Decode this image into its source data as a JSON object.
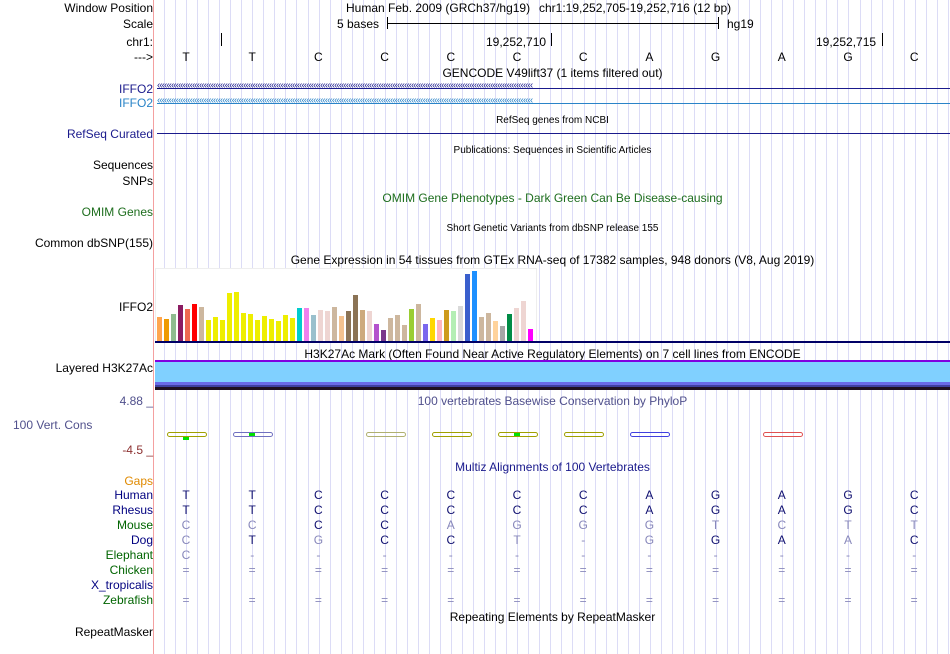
{
  "labels": {
    "window_position": "Window Position",
    "scale": "Scale",
    "chr": "chr1:",
    "strand": "--->",
    "iffo2_a": "IFFO2",
    "iffo2_b": "IFFO2",
    "refseq": "RefSeq Curated",
    "sequences": "Sequences",
    "snps": "SNPs",
    "omim": "OMIM Genes",
    "dbsnp": "Common dbSNP(155)",
    "gtex": "IFFO2",
    "h3k27ac": "Layered H3K27Ac",
    "cons_max": "4.88 _",
    "cons": "100 Vert. Cons",
    "cons_min": "-4.5 _",
    "gaps": "Gaps",
    "repeatmasker": "RepeatMasker"
  },
  "header": {
    "assembly": "Human Feb. 2009 (GRCh37/hg19)",
    "position": "chr1:19,252,705-19,252,716 (12 bp)",
    "scale_text": "5 bases",
    "scale_db": "hg19",
    "tick1": "19,252,710",
    "tick2": "19,252,715"
  },
  "bases": [
    "T",
    "T",
    "C",
    "C",
    "C",
    "C",
    "C",
    "A",
    "G",
    "A",
    "G",
    "C"
  ],
  "titles": {
    "gencode": "GENCODE V49lift37 (1 items filtered out)",
    "refseq": "RefSeq genes from NCBI",
    "pubs": "Publications: Sequences in Scientific Articles",
    "omim": "OMIM Gene Phenotypes - Dark Green Can Be Disease-causing",
    "dbsnp": "Short Genetic Variants from dbSNP release 155",
    "gtex": "Gene Expression in 54 tissues from GTEx RNA-seq of 17382 samples, 948 donors (V8, Aug 2019)",
    "h3k27ac": "H3K27Ac Mark (Often Found Near Active Regulatory Elements) on 7 cell lines from ENCODE",
    "cons": "100 vertebrates Basewise Conservation by PhyloP",
    "multiz": "Multiz Alignments of 100 Vertebrates",
    "repeat": "Repeating Elements by RepeatMasker"
  },
  "gtex_values": [
    77,
    71,
    86,
    113,
    101,
    116,
    107,
    68,
    77,
    68,
    149,
    152,
    89,
    86,
    68,
    80,
    71,
    65,
    83,
    74,
    104,
    104,
    83,
    98,
    95,
    107,
    80,
    95,
    143,
    98,
    95,
    56,
    38,
    74,
    83,
    53,
    101,
    116,
    56,
    74,
    68,
    98,
    95,
    110,
    209,
    218,
    77,
    89,
    65,
    50,
    86,
    104,
    125,
    41
  ],
  "gtex_colors": [
    "#FFA54F",
    "#EE9A00",
    "#8FBC8F",
    "#8B1C62",
    "#EE6A50",
    "#FF0000",
    "#CDB79E",
    "#EEEE00",
    "#EEEE00",
    "#EEEE00",
    "#EEEE00",
    "#EEEE00",
    "#EEEE00",
    "#EEEE00",
    "#EEEE00",
    "#EEEE00",
    "#EEEE00",
    "#EEEE00",
    "#EEEE00",
    "#EEEE00",
    "#00CDCD",
    "#EE82EE",
    "#9AC0CD",
    "#EED5D2",
    "#EED5D2",
    "#CDB79E",
    "#F4C28F",
    "#8B7355",
    "#8B7355",
    "#CDAA7D",
    "#EED5D2",
    "#B452CD",
    "#7A378B",
    "#CDB79E",
    "#CDB79E",
    "#CDB79E",
    "#9ACD32",
    "#CDB79E",
    "#7A67EE",
    "#FFD700",
    "#FFB6C1",
    "#CD9B1D",
    "#B4EEB4",
    "#D9D9D9",
    "#3A5FCD",
    "#1E90FF",
    "#CDB79E",
    "#CDB79E",
    "#FFD39B",
    "#A6A6A6",
    "#008B45",
    "#EED5D2",
    "#EED5D2",
    "#FF00FF"
  ],
  "multiz": [
    {
      "species": "Human",
      "color": "#000080",
      "seq": "TTCCCCCAGAGC"
    },
    {
      "species": "Rhesus",
      "color": "#000080",
      "seq": "TTCCCCCAGAGC"
    },
    {
      "species": "Mouse",
      "color": "#006400",
      "seq": "CCCCAGGGTCTT"
    },
    {
      "species": "Dog",
      "color": "#000080",
      "seq": "CTGCCT-GGAAC"
    },
    {
      "species": "Elephant",
      "color": "#006400",
      "seq": "C-----------"
    },
    {
      "species": "Chicken",
      "color": "#006400",
      "seq": "============"
    },
    {
      "species": "X_tropicalis",
      "color": "#000080",
      "seq": ""
    },
    {
      "species": "Zebrafish",
      "color": "#006400",
      "seq": "============"
    }
  ]
}
